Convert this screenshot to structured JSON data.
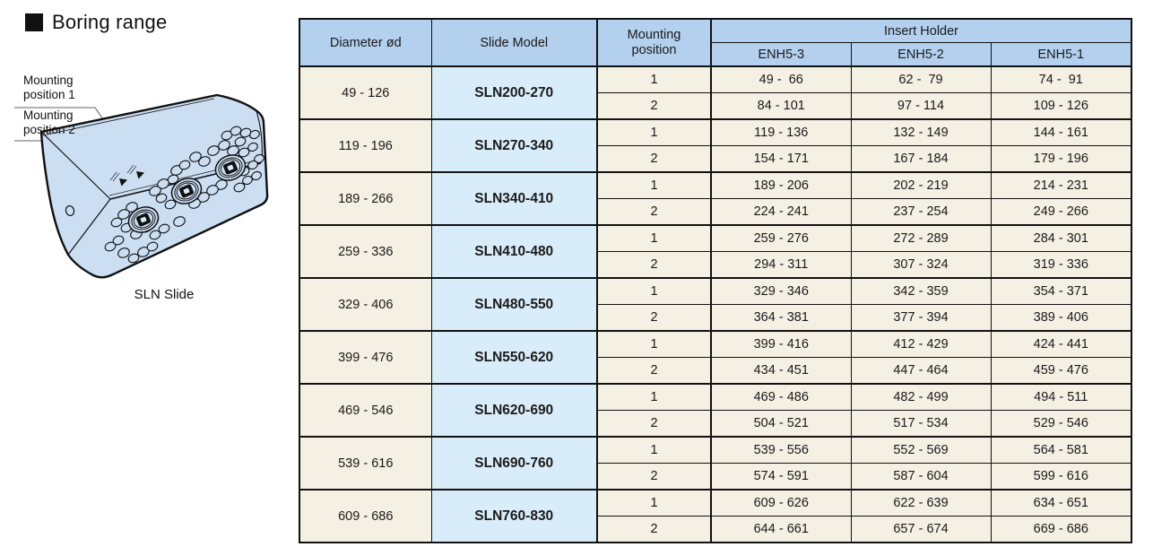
{
  "title": "Boring range",
  "illustration": {
    "label_position_1": "Mounting position 1",
    "label_position_2": "Mounting position 2",
    "caption": "SLN Slide"
  },
  "table": {
    "headers": {
      "diameter": "Diameter ød",
      "slide_model": "Slide Model",
      "mounting_position": "Mounting position",
      "insert_holder": "Insert Holder",
      "holder_models": [
        "ENH5-3",
        "ENH5-2",
        "ENH5-1"
      ]
    },
    "groups": [
      {
        "diameter": "49 - 126",
        "model": "SLN200-270",
        "rows": [
          {
            "position": "1",
            "enh5_3": "49 -  66",
            "enh5_2": "62 -  79",
            "enh5_1": "74 -  91"
          },
          {
            "position": "2",
            "enh5_3": "84 - 101",
            "enh5_2": "97 - 114",
            "enh5_1": "109 - 126"
          }
        ]
      },
      {
        "diameter": "119 - 196",
        "model": "SLN270-340",
        "rows": [
          {
            "position": "1",
            "enh5_3": "119 - 136",
            "enh5_2": "132 - 149",
            "enh5_1": "144 - 161"
          },
          {
            "position": "2",
            "enh5_3": "154 - 171",
            "enh5_2": "167 - 184",
            "enh5_1": "179 - 196"
          }
        ]
      },
      {
        "diameter": "189 - 266",
        "model": "SLN340-410",
        "rows": [
          {
            "position": "1",
            "enh5_3": "189 - 206",
            "enh5_2": "202 - 219",
            "enh5_1": "214 - 231"
          },
          {
            "position": "2",
            "enh5_3": "224 - 241",
            "enh5_2": "237 - 254",
            "enh5_1": "249 - 266"
          }
        ]
      },
      {
        "diameter": "259 - 336",
        "model": "SLN410-480",
        "rows": [
          {
            "position": "1",
            "enh5_3": "259 - 276",
            "enh5_2": "272 - 289",
            "enh5_1": "284 - 301"
          },
          {
            "position": "2",
            "enh5_3": "294 - 311",
            "enh5_2": "307 - 324",
            "enh5_1": "319 - 336"
          }
        ]
      },
      {
        "diameter": "329 - 406",
        "model": "SLN480-550",
        "rows": [
          {
            "position": "1",
            "enh5_3": "329 - 346",
            "enh5_2": "342 - 359",
            "enh5_1": "354 - 371"
          },
          {
            "position": "2",
            "enh5_3": "364 - 381",
            "enh5_2": "377 - 394",
            "enh5_1": "389 - 406"
          }
        ]
      },
      {
        "diameter": "399 - 476",
        "model": "SLN550-620",
        "rows": [
          {
            "position": "1",
            "enh5_3": "399 - 416",
            "enh5_2": "412 - 429",
            "enh5_1": "424 - 441"
          },
          {
            "position": "2",
            "enh5_3": "434 - 451",
            "enh5_2": "447 - 464",
            "enh5_1": "459 - 476"
          }
        ]
      },
      {
        "diameter": "469 - 546",
        "model": "SLN620-690",
        "rows": [
          {
            "position": "1",
            "enh5_3": "469 - 486",
            "enh5_2": "482 - 499",
            "enh5_1": "494 - 511"
          },
          {
            "position": "2",
            "enh5_3": "504 - 521",
            "enh5_2": "517 - 534",
            "enh5_1": "529 - 546"
          }
        ]
      },
      {
        "diameter": "539 - 616",
        "model": "SLN690-760",
        "rows": [
          {
            "position": "1",
            "enh5_3": "539 - 556",
            "enh5_2": "552 - 569",
            "enh5_1": "564 - 581"
          },
          {
            "position": "2",
            "enh5_3": "574 - 591",
            "enh5_2": "587 - 604",
            "enh5_1": "599 - 616"
          }
        ]
      },
      {
        "diameter": "609 - 686",
        "model": "SLN760-830",
        "rows": [
          {
            "position": "1",
            "enh5_3": "609 - 626",
            "enh5_2": "622 - 639",
            "enh5_1": "634 - 651"
          },
          {
            "position": "2",
            "enh5_3": "644 - 661",
            "enh5_2": "657 - 674",
            "enh5_1": "669 - 686"
          }
        ]
      }
    ]
  },
  "colors": {
    "header_bg": "#b3d1ee",
    "model_cell_bg": "#d9ecf9",
    "cell_bg": "#f4f0e3",
    "border": "#111111",
    "inner_rule": "#999999",
    "illustration_fill": "#cbdef2"
  }
}
